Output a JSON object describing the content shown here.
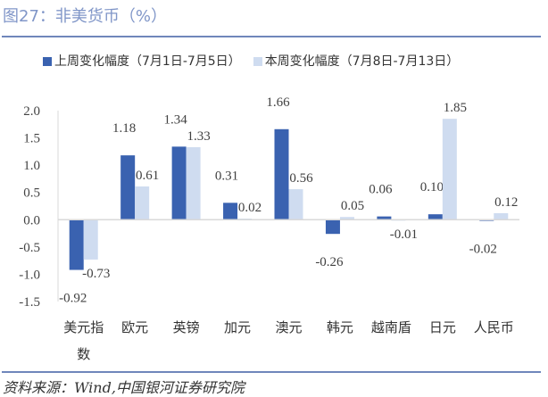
{
  "title": "图27：非美货币（%）",
  "source": "资料来源：Wind,中国银河证券研究院",
  "colors": {
    "series1": "#3a62b0",
    "series2": "#cfdcf0",
    "accent": "#6f86bb"
  },
  "chart_data": {
    "type": "bar",
    "title": "",
    "categories": [
      "美元指数",
      "欧元",
      "英镑",
      "加元",
      "澳元",
      "韩元",
      "越南盾",
      "日元",
      "人民币"
    ],
    "series": [
      {
        "name": "上周变化幅度（7月1日-7月5日）",
        "values": [
          -0.92,
          1.18,
          1.34,
          0.31,
          1.66,
          -0.26,
          0.06,
          0.1,
          -0.02
        ]
      },
      {
        "name": "本周变化幅度（7月8日-7月13日）",
        "values": [
          -0.73,
          0.61,
          1.33,
          0.02,
          0.56,
          0.05,
          -0.01,
          1.85,
          0.12
        ]
      }
    ],
    "ylim": [
      -1.5,
      2.0
    ],
    "yticks": [
      "2.0",
      "1.5",
      "1.0",
      "0.5",
      "0.0",
      "-0.5",
      "-1.0",
      "-1.5"
    ],
    "legend": "top",
    "grid": false
  }
}
